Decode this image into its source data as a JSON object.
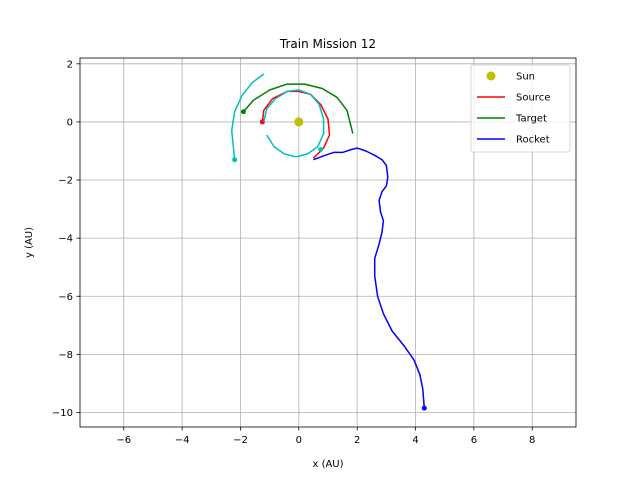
{
  "chart_data": {
    "type": "line",
    "title": "Train Mission 12",
    "xlabel": "x (AU)",
    "ylabel": "y (AU)",
    "xlim": [
      -7.5,
      9.5
    ],
    "ylim": [
      -10.5,
      2.2
    ],
    "xticks": [
      -6,
      -4,
      -2,
      0,
      2,
      4,
      6,
      8
    ],
    "yticks": [
      2,
      0,
      -2,
      -4,
      -6,
      -8,
      -10
    ],
    "xtick_labels": [
      "−6",
      "−4",
      "−2",
      "0",
      "2",
      "4",
      "6",
      "8"
    ],
    "ytick_labels": [
      "2",
      "0",
      "−2",
      "−4",
      "−6",
      "−8",
      "−10"
    ],
    "grid": true,
    "legend_position": "top-right",
    "colors": {
      "sun": "#bfbf00",
      "source": "#ff0000",
      "target": "#008000",
      "rocket": "#0000ff",
      "extra": "#00bfbf"
    },
    "sun": {
      "name": "Sun",
      "x": 0,
      "y": 0
    },
    "series": [
      {
        "name": "Source",
        "color_key": "source",
        "points": [
          [
            -1.25,
            0.0
          ],
          [
            -1.2,
            0.4
          ],
          [
            -0.9,
            0.8
          ],
          [
            -0.4,
            1.05
          ],
          [
            0.0,
            1.05
          ],
          [
            0.4,
            0.95
          ],
          [
            0.75,
            0.6
          ],
          [
            1.0,
            0.1
          ],
          [
            1.05,
            -0.45
          ],
          [
            0.85,
            -0.9
          ],
          [
            0.5,
            -1.25
          ]
        ],
        "start_marker": [
          -1.25,
          0.0
        ]
      },
      {
        "name": "Target",
        "color_key": "target",
        "points": [
          [
            -1.9,
            0.35
          ],
          [
            -1.55,
            0.75
          ],
          [
            -1.0,
            1.1
          ],
          [
            -0.4,
            1.3
          ],
          [
            0.2,
            1.3
          ],
          [
            0.8,
            1.15
          ],
          [
            1.3,
            0.85
          ],
          [
            1.65,
            0.4
          ],
          [
            1.85,
            -0.4
          ]
        ],
        "start_marker": [
          -1.9,
          0.35
        ]
      },
      {
        "name": "Rocket",
        "color_key": "rocket",
        "points": [
          [
            0.5,
            -1.3
          ],
          [
            0.9,
            -1.15
          ],
          [
            1.2,
            -1.05
          ],
          [
            1.5,
            -1.05
          ],
          [
            1.8,
            -0.95
          ],
          [
            2.0,
            -0.9
          ],
          [
            2.3,
            -1.0
          ],
          [
            2.6,
            -1.15
          ],
          [
            2.85,
            -1.3
          ],
          [
            3.0,
            -1.5
          ],
          [
            3.05,
            -1.9
          ],
          [
            3.0,
            -2.2
          ],
          [
            2.85,
            -2.4
          ],
          [
            2.75,
            -2.7
          ],
          [
            2.8,
            -3.1
          ],
          [
            2.9,
            -3.4
          ],
          [
            2.85,
            -3.8
          ],
          [
            2.75,
            -4.2
          ],
          [
            2.6,
            -4.7
          ],
          [
            2.6,
            -5.3
          ],
          [
            2.7,
            -6.0
          ],
          [
            2.9,
            -6.6
          ],
          [
            3.2,
            -7.2
          ],
          [
            3.6,
            -7.7
          ],
          [
            3.95,
            -8.2
          ],
          [
            4.15,
            -8.7
          ],
          [
            4.25,
            -9.2
          ],
          [
            4.3,
            -9.85
          ]
        ],
        "end_marker": [
          4.3,
          -9.85
        ]
      },
      {
        "color_key": "extra",
        "points": [
          [
            -1.2,
            0.0
          ],
          [
            -1.1,
            0.45
          ],
          [
            -0.8,
            0.8
          ],
          [
            -0.4,
            1.05
          ],
          [
            0.0,
            1.1
          ],
          [
            0.4,
            0.95
          ],
          [
            0.7,
            0.6
          ],
          [
            0.85,
            0.1
          ],
          [
            0.85,
            -0.4
          ],
          [
            0.65,
            -0.85
          ],
          [
            0.3,
            -1.1
          ],
          [
            -0.1,
            -1.2
          ],
          [
            -0.5,
            -1.1
          ],
          [
            -0.85,
            -0.85
          ],
          [
            -1.1,
            -0.45
          ]
        ],
        "end_marker": [
          0.75,
          -0.95
        ]
      },
      {
        "color_key": "extra",
        "points": [
          [
            -1.2,
            1.65
          ],
          [
            -1.6,
            1.35
          ],
          [
            -1.95,
            0.9
          ],
          [
            -2.2,
            0.35
          ],
          [
            -2.3,
            -0.3
          ],
          [
            -2.25,
            -0.8
          ],
          [
            -2.2,
            -1.3
          ]
        ],
        "end_marker": [
          -2.2,
          -1.3
        ]
      }
    ],
    "legend": [
      "Sun",
      "Source",
      "Target",
      "Rocket"
    ]
  }
}
